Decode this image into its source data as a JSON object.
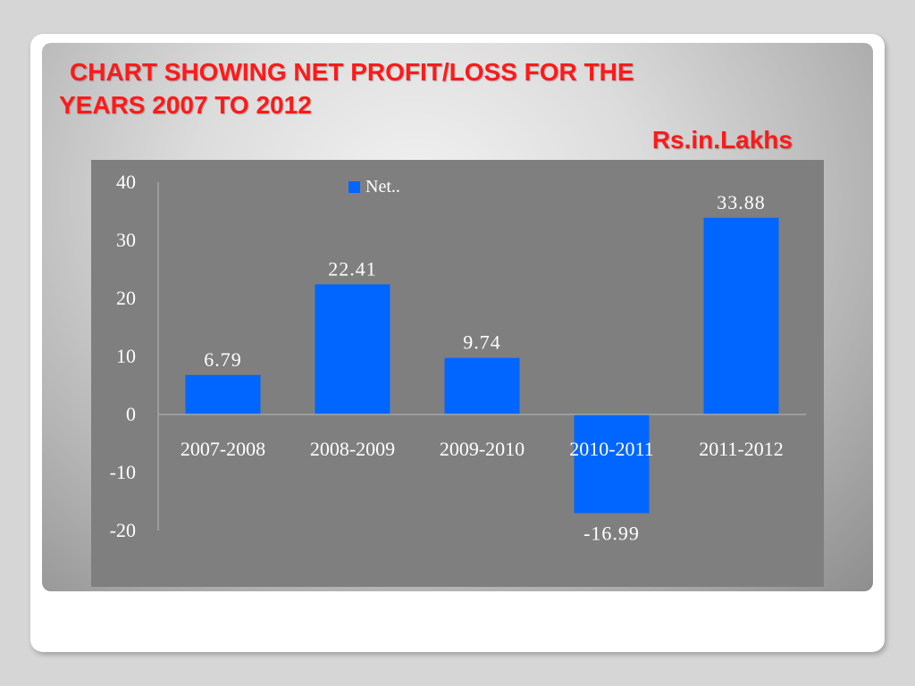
{
  "slide": {
    "title_line1": "CHART SHOWING NET PROFIT/LOSS FOR THE",
    "title_line2": "YEARS 2007 TO 2012",
    "unit": "Rs.in.Lakhs"
  },
  "colors": {
    "title": "#ff1a1a",
    "plot_background": "#7f7f7f",
    "bar": "#0066ff",
    "text": "#ffffff"
  },
  "chart_data": {
    "type": "bar",
    "title": "CHART SHOWING NET PROFIT/LOSS FOR THE YEARS 2007 TO 2012",
    "unit": "Rs.in.Lakhs",
    "categories": [
      "2007-2008",
      "2008-2009",
      "2009-2010",
      "2010-2011",
      "2011-2012"
    ],
    "series": [
      {
        "name": "Net..",
        "values": [
          6.79,
          22.41,
          9.74,
          -16.99,
          33.88
        ]
      }
    ],
    "data_labels": [
      "6.79",
      "22.41",
      "9.74",
      "-16.99",
      "33.88"
    ],
    "ylim": [
      -20,
      40
    ],
    "yticks": [
      40,
      30,
      20,
      10,
      0,
      -10,
      -20
    ],
    "legend_position": "top",
    "grid": false
  }
}
